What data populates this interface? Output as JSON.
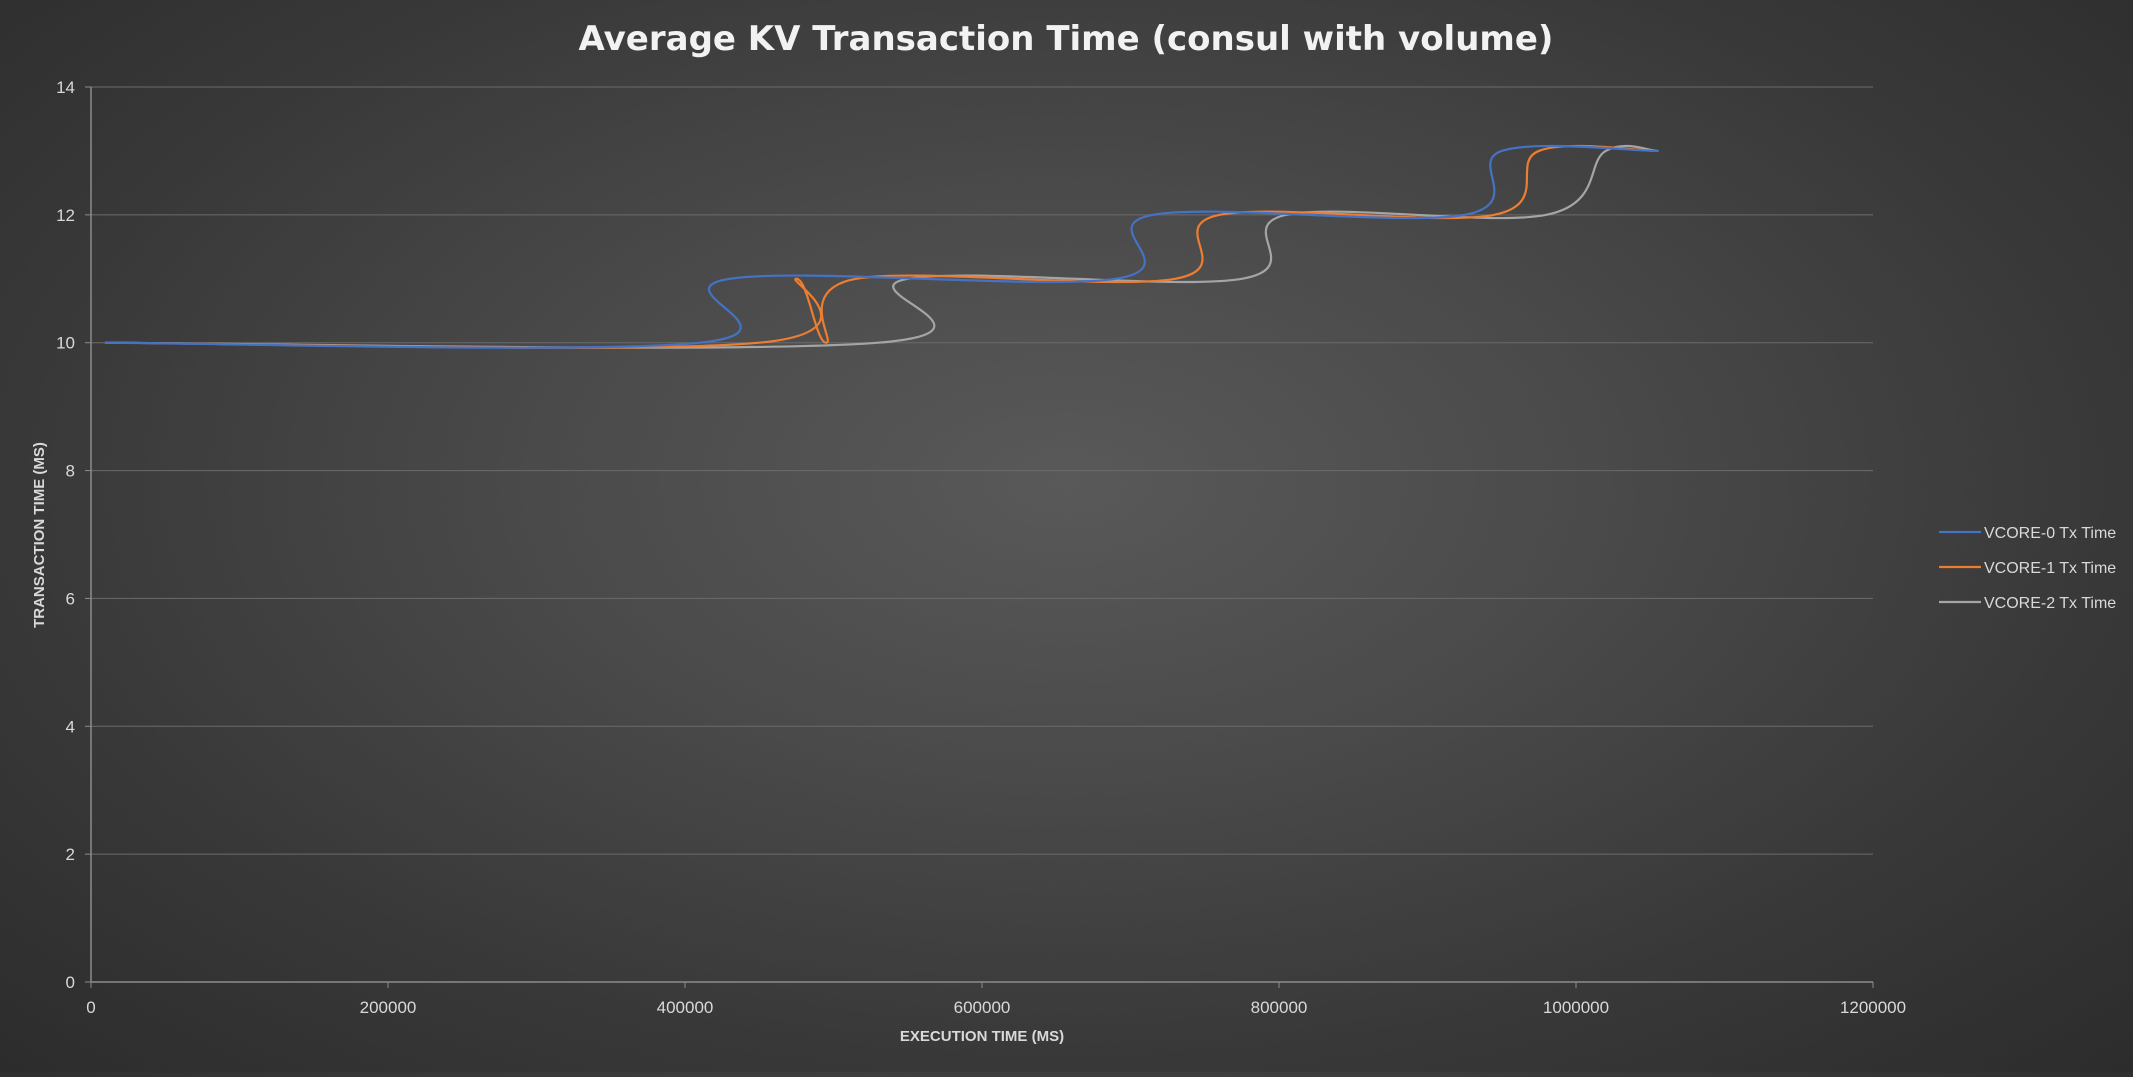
{
  "chart_data": {
    "type": "line",
    "title": "Average KV Transaction Time (consul with volume)",
    "xlabel": "EXECUTION TIME (MS)",
    "ylabel": "TRANSACTION TIME (MS)",
    "xlim": [
      0,
      1200000
    ],
    "ylim": [
      0,
      14
    ],
    "x_ticks": [
      0,
      200000,
      400000,
      600000,
      800000,
      1000000,
      1200000
    ],
    "y_ticks": [
      0,
      2,
      4,
      6,
      8,
      10,
      12,
      14
    ],
    "grid": true,
    "legend_position": "right",
    "series": [
      {
        "name": "VCORE-0 Tx Time",
        "color": "#4472c4",
        "x": [
          10000,
          410000,
          430000,
          690000,
          715000,
          925000,
          950000,
          1055000
        ],
        "y": [
          10,
          10,
          11,
          11,
          12,
          12,
          13,
          13
        ]
      },
      {
        "name": "VCORE-1 Tx Time",
        "color": "#ed7d31",
        "x": [
          10000,
          450000,
          475000,
          495000,
          515000,
          730000,
          760000,
          945000,
          975000,
          1055000
        ],
        "y": [
          10,
          10,
          11,
          10,
          11,
          11,
          12,
          12,
          13,
          13
        ]
      },
      {
        "name": "VCORE-2 Tx Time",
        "color": "#a5a5a5",
        "x": [
          10000,
          530000,
          550000,
          775000,
          805000,
          980000,
          1020000,
          1055000
        ],
        "y": [
          10,
          10,
          11,
          11,
          12,
          12,
          13,
          13
        ]
      }
    ]
  }
}
